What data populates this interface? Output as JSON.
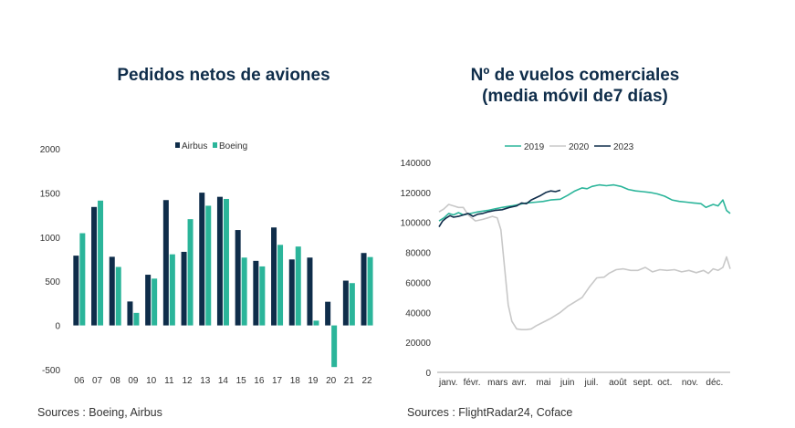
{
  "chart_data": [
    {
      "type": "bar",
      "title": "Pedidos netos de aviones",
      "categories": [
        "06",
        "07",
        "08",
        "09",
        "10",
        "11",
        "12",
        "13",
        "14",
        "15",
        "16",
        "17",
        "18",
        "19",
        "20",
        "21",
        "22"
      ],
      "series": [
        {
          "name": "Airbus",
          "color": "#0f2d4a",
          "values": [
            790,
            1341,
            777,
            271,
            574,
            1419,
            833,
            1503,
            1456,
            1080,
            731,
            1109,
            747,
            768,
            268,
            507,
            820
          ]
        },
        {
          "name": "Boeing",
          "color": "#2bb59a",
          "values": [
            1044,
            1413,
            662,
            142,
            530,
            805,
            1203,
            1355,
            1432,
            768,
            668,
            912,
            893,
            54,
            -471,
            479,
            774
          ]
        }
      ],
      "ylim": [
        -500,
        2000
      ],
      "yticks": [
        2000,
        1500,
        1000,
        500,
        0,
        -500
      ],
      "legend": "top-center",
      "grid": false,
      "source": "Sources : Boeing, Airbus"
    },
    {
      "type": "line",
      "title_line1": "Nº de vuelos comerciales",
      "title_line2": "(media móvil de7 días)",
      "x_labels": [
        "janv.",
        "févr.",
        "mars",
        "avr.",
        "mai",
        "juin",
        "juil.",
        "août",
        "sept.",
        "oct.",
        "nov.",
        "déc."
      ],
      "ylim": [
        0,
        140000
      ],
      "yticks": [
        140000,
        120000,
        100000,
        80000,
        60000,
        40000,
        20000,
        0
      ],
      "legend": "top-center",
      "grid": false,
      "series": [
        {
          "name": "2019",
          "color": "#2bb59a",
          "x": [
            0,
            0.2,
            0.4,
            0.6,
            0.8,
            1.0,
            1.3,
            1.6,
            2.0,
            2.3,
            2.6,
            3.0,
            3.3,
            3.6,
            4.0,
            4.3,
            4.6,
            5.0,
            5.3,
            5.6,
            5.9,
            6.1,
            6.3,
            6.6,
            6.9,
            7.2,
            7.5,
            7.8,
            8.1,
            8.4,
            8.7,
            9.0,
            9.3,
            9.6,
            9.9,
            10.2,
            10.5,
            10.8,
            11.0,
            11.3,
            11.5,
            11.7,
            11.85,
            12.0
          ],
          "values": [
            101000,
            103000,
            106000,
            105000,
            106500,
            105000,
            106000,
            107000,
            108000,
            109000,
            110000,
            111000,
            112000,
            113000,
            113500,
            114000,
            115000,
            115500,
            118000,
            121000,
            123000,
            122500,
            124000,
            125000,
            124500,
            125000,
            124000,
            122000,
            121000,
            120500,
            120000,
            119000,
            117500,
            115000,
            114000,
            113500,
            113000,
            112500,
            110000,
            112000,
            111000,
            115000,
            108000,
            106000
          ]
        },
        {
          "name": "2020",
          "color": "#c8c8c8",
          "x": [
            0,
            0.2,
            0.4,
            0.6,
            0.8,
            1.0,
            1.2,
            1.5,
            1.8,
            2.0,
            2.2,
            2.4,
            2.55,
            2.7,
            2.85,
            3.0,
            3.2,
            3.4,
            3.6,
            3.8,
            4.0,
            4.3,
            4.6,
            5.0,
            5.3,
            5.6,
            5.9,
            6.2,
            6.5,
            6.8,
            7.0,
            7.3,
            7.6,
            7.9,
            8.2,
            8.5,
            8.8,
            9.1,
            9.4,
            9.7,
            10.0,
            10.3,
            10.6,
            10.9,
            11.1,
            11.3,
            11.5,
            11.7,
            11.85,
            12.0
          ],
          "values": [
            107000,
            109000,
            112000,
            111000,
            110000,
            110000,
            105000,
            101000,
            102000,
            103000,
            104000,
            103000,
            95000,
            70000,
            45000,
            34000,
            29000,
            28500,
            28500,
            29000,
            31000,
            33500,
            36000,
            40000,
            44000,
            47000,
            50000,
            57000,
            63000,
            63500,
            66000,
            68500,
            69000,
            68000,
            68000,
            70000,
            67000,
            68500,
            68000,
            68500,
            67000,
            68000,
            66500,
            68000,
            66000,
            69000,
            68000,
            70000,
            77000,
            69000
          ]
        },
        {
          "name": "2023",
          "color": "#0f2d4a",
          "x": [
            0,
            0.15,
            0.3,
            0.45,
            0.6,
            0.8,
            1.0,
            1.2,
            1.4,
            1.6,
            1.8,
            2.0,
            2.3,
            2.6,
            2.9,
            3.2,
            3.4,
            3.6,
            3.8,
            4.0,
            4.2,
            4.4,
            4.6,
            4.8,
            5.0
          ],
          "values": [
            97000,
            101000,
            103000,
            104500,
            103500,
            104000,
            105000,
            106000,
            104000,
            105500,
            106000,
            107000,
            108000,
            108500,
            110000,
            111000,
            113000,
            112500,
            115000,
            116500,
            118000,
            120000,
            121000,
            120500,
            121500
          ]
        }
      ],
      "source": "Sources : FlightRadar24,  Coface"
    }
  ]
}
